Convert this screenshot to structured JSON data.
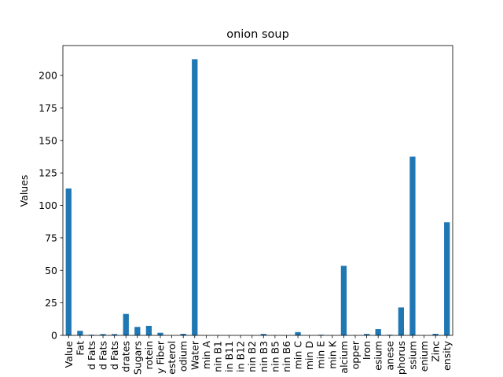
{
  "chart_data": {
    "type": "bar",
    "title": "onion soup",
    "xlabel": "",
    "ylabel": "Values",
    "ylim": [
      0,
      223
    ],
    "yticks": [
      0,
      25,
      50,
      75,
      100,
      125,
      150,
      175,
      200
    ],
    "grid": false,
    "legend": "none",
    "bar_color": "#1f77b4",
    "categories": [
      "Value",
      "Fat",
      "d Fats",
      "d Fats",
      "d Fats",
      "drates",
      "Sugars",
      "rotein",
      "y Fiber",
      "esterol",
      "odium",
      "Water",
      "min A",
      "nin B1",
      "in B11",
      "in B12",
      "nin B2",
      "nin B3",
      "nin B5",
      "nin B6",
      "min C",
      "min D",
      "min E",
      "min K",
      "alcium",
      "opper",
      "Iron",
      "esium",
      "anese",
      "phorus",
      "ssium",
      "enium",
      "Zinc",
      "ensity"
    ],
    "values": [
      113,
      3.5,
      0.5,
      1,
      1,
      16.5,
      6.5,
      7.3,
      2,
      0,
      1.2,
      212.5,
      0,
      0,
      0,
      0,
      0,
      1.1,
      0,
      0,
      2.5,
      0,
      0.5,
      0,
      53.5,
      0,
      1.1,
      4.8,
      0.5,
      21.5,
      137.5,
      0,
      1.2,
      87
    ]
  }
}
